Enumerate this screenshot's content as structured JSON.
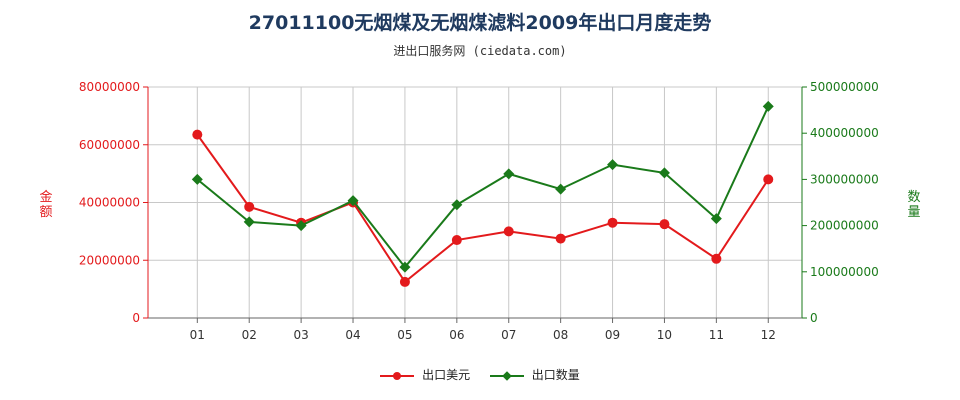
{
  "title": "27011100无烟煤及无烟煤滤料2009年出口月度走势",
  "subtitle": "进出口服务网 (ciedata.com)",
  "colors": {
    "left": "#e31a1c",
    "right": "#1a7a1a",
    "grid": "#c8c8c8",
    "axis": "#666666"
  },
  "chart_data": {
    "type": "line",
    "categories": [
      "01",
      "02",
      "03",
      "04",
      "05",
      "06",
      "07",
      "08",
      "09",
      "10",
      "11",
      "12"
    ],
    "y_left": {
      "label": "金额",
      "ticks": [
        "0",
        "20000000",
        "40000000",
        "60000000",
        "80000000"
      ],
      "range": [
        0,
        80000000
      ]
    },
    "y_right": {
      "label": "数量",
      "ticks": [
        "0",
        "100000000",
        "200000000",
        "300000000",
        "400000000",
        "500000000"
      ],
      "range": [
        0,
        500000000
      ]
    },
    "series": [
      {
        "name": "出口美元",
        "axis": "left",
        "marker": "circle",
        "values": [
          63500000,
          38500000,
          33000000,
          40000000,
          12500000,
          27000000,
          30000000,
          27500000,
          33000000,
          32500000,
          20500000,
          48000000
        ]
      },
      {
        "name": "出口数量",
        "axis": "right",
        "marker": "diamond",
        "values": [
          300000000,
          208000000,
          200000000,
          254000000,
          110000000,
          245000000,
          312000000,
          279000000,
          332000000,
          314000000,
          215000000,
          458000000
        ]
      }
    ],
    "grid": true,
    "legend_position": "bottom"
  }
}
